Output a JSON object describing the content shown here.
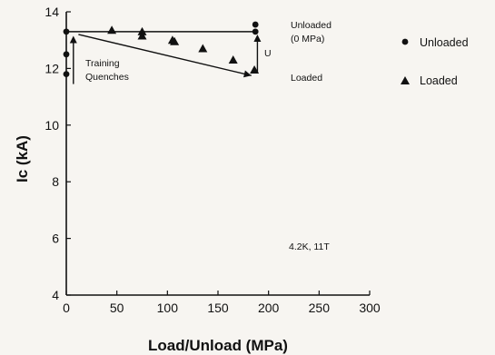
{
  "chart_data": {
    "type": "scatter",
    "xlabel": "Load/Unload (MPa)",
    "ylabel": "Ic (kA)",
    "xlim": [
      0,
      300
    ],
    "ylim": [
      4,
      14
    ],
    "x_ticks": [
      "0",
      "50",
      "100",
      "150",
      "200",
      "250",
      "300"
    ],
    "y_ticks": [
      "4",
      "6",
      "8",
      "10",
      "12",
      "14"
    ],
    "grid": false,
    "legend_position": "right",
    "series": [
      {
        "name": "Unloaded",
        "marker": "circle",
        "points": [
          [
            0,
            11.8
          ],
          [
            0,
            12.5
          ],
          [
            0,
            13.3
          ],
          [
            187,
            13.55
          ],
          [
            187,
            13.3
          ]
        ]
      },
      {
        "name": "Loaded",
        "marker": "triangle",
        "points": [
          [
            45,
            13.35
          ],
          [
            75,
            13.3
          ],
          [
            75,
            13.15
          ],
          [
            105,
            13.0
          ],
          [
            107,
            12.95
          ],
          [
            135,
            12.7
          ],
          [
            165,
            12.3
          ],
          [
            186,
            11.95
          ]
        ]
      }
    ],
    "reference_line_y": 13.3,
    "annotations": {
      "training": [
        "Training",
        "Quenches"
      ],
      "unloaded": [
        "Unloaded",
        "(0 MPa)"
      ],
      "loaded": "Loaded",
      "unload_arrow": "U",
      "conditions": "4.2K, 11T"
    }
  }
}
